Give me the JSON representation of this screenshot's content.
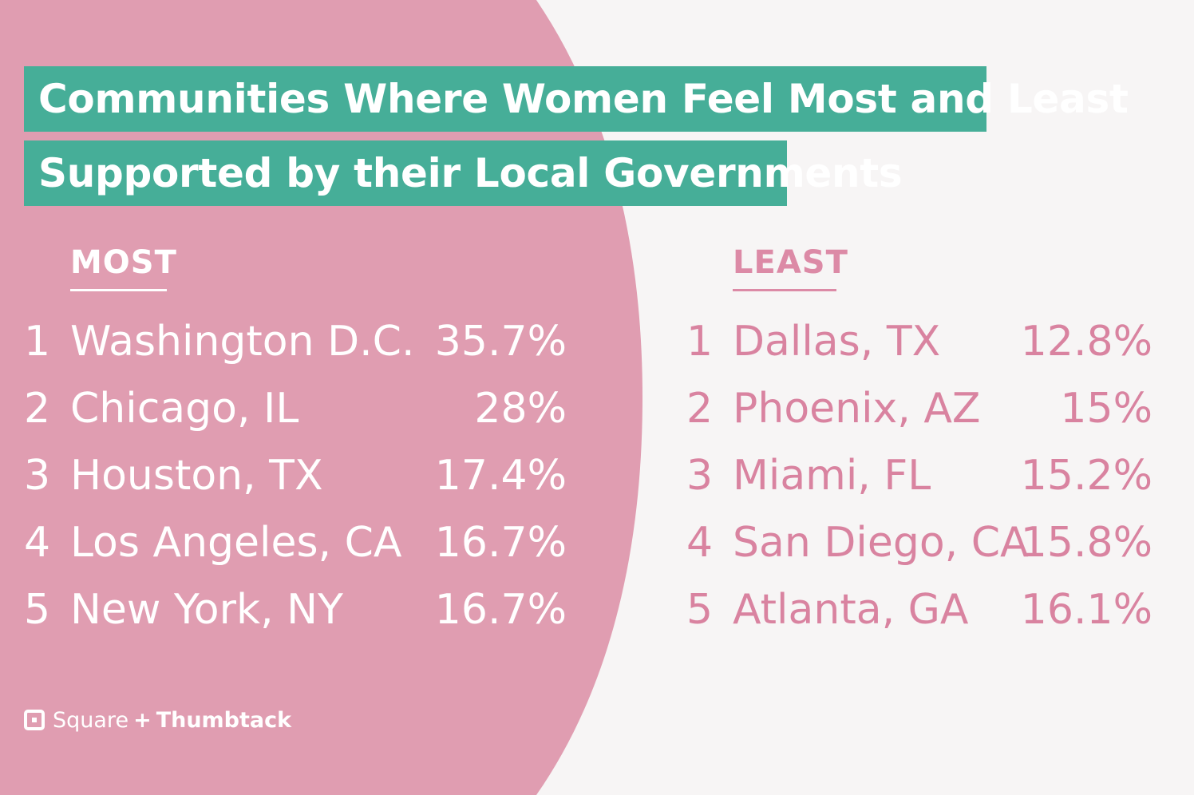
{
  "colors": {
    "pink": "#e09db1",
    "teal": "#46ae98",
    "background": "#f7f5f5",
    "least_text": "#d983a0"
  },
  "title": {
    "line1": "Communities Where Women Feel Most and Least",
    "line2": "Supported by their Local Governments"
  },
  "chart_data": {
    "type": "table",
    "title": "Communities Where Women Feel Most and Least Supported by their Local Governments",
    "columns": [
      {
        "name": "MOST",
        "rows": [
          {
            "rank": "1",
            "city": "Washington D.C.",
            "value": "35.7%"
          },
          {
            "rank": "2",
            "city": "Chicago, IL",
            "value": "28%"
          },
          {
            "rank": "3",
            "city": "Houston, TX",
            "value": "17.4%"
          },
          {
            "rank": "4",
            "city": "Los Angeles, CA",
            "value": "16.7%"
          },
          {
            "rank": "5",
            "city": "New York, NY",
            "value": "16.7%"
          }
        ]
      },
      {
        "name": "LEAST",
        "rows": [
          {
            "rank": "1",
            "city": "Dallas, TX",
            "value": "12.8%"
          },
          {
            "rank": "2",
            "city": "Phoenix, AZ",
            "value": "15%"
          },
          {
            "rank": "3",
            "city": "Miami, FL",
            "value": "15.2%"
          },
          {
            "rank": "4",
            "city": "San Diego, CA",
            "value": "15.8%"
          },
          {
            "rank": "5",
            "city": "Atlanta, GA",
            "value": "16.1%"
          }
        ]
      }
    ]
  },
  "logo": {
    "square": "Square",
    "plus": "+",
    "thumbtack": "Thumbtack"
  }
}
